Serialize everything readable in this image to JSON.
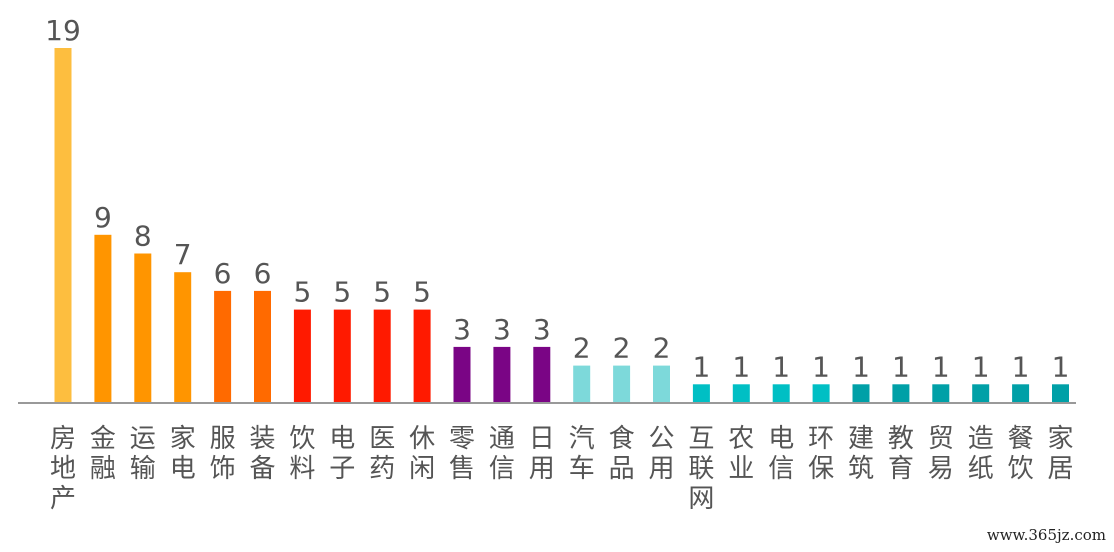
{
  "watermark": "www.365jz.com",
  "chart_data": {
    "type": "bar",
    "title": "",
    "xlabel": "",
    "ylabel": "",
    "ylim": [
      0,
      19
    ],
    "grid": false,
    "legend": "none",
    "categories": [
      "房地产",
      "金融",
      "运输",
      "家电",
      "服饰",
      "装备",
      "饮料",
      "电子",
      "医药",
      "休闲",
      "零售",
      "通信",
      "日用",
      "汽车",
      "食品",
      "公用",
      "互联网",
      "农业",
      "电信",
      "环保",
      "建筑",
      "教育",
      "贸易",
      "造纸",
      "餐饮",
      "家居"
    ],
    "values": [
      19,
      9,
      8,
      7,
      6,
      6,
      5,
      5,
      5,
      5,
      3,
      3,
      3,
      2,
      2,
      2,
      1,
      1,
      1,
      1,
      1,
      1,
      1,
      1,
      1,
      1
    ],
    "colors": [
      "#FDBE3F",
      "#FF9500",
      "#FF9500",
      "#FF9500",
      "#FF6A00",
      "#FF6A00",
      "#FF1A00",
      "#FF1A00",
      "#FF1A00",
      "#FF1A00",
      "#7A0585",
      "#7A0585",
      "#7A0585",
      "#7DD9DA",
      "#7DD9DA",
      "#7DD9DA",
      "#00BFC4",
      "#00BFC4",
      "#00BFC4",
      "#00BFC4",
      "#00A0A7",
      "#00A0A7",
      "#00A0A7",
      "#00A0A7",
      "#00A0A7",
      "#00A0A7"
    ],
    "axis_color": "#999999"
  }
}
